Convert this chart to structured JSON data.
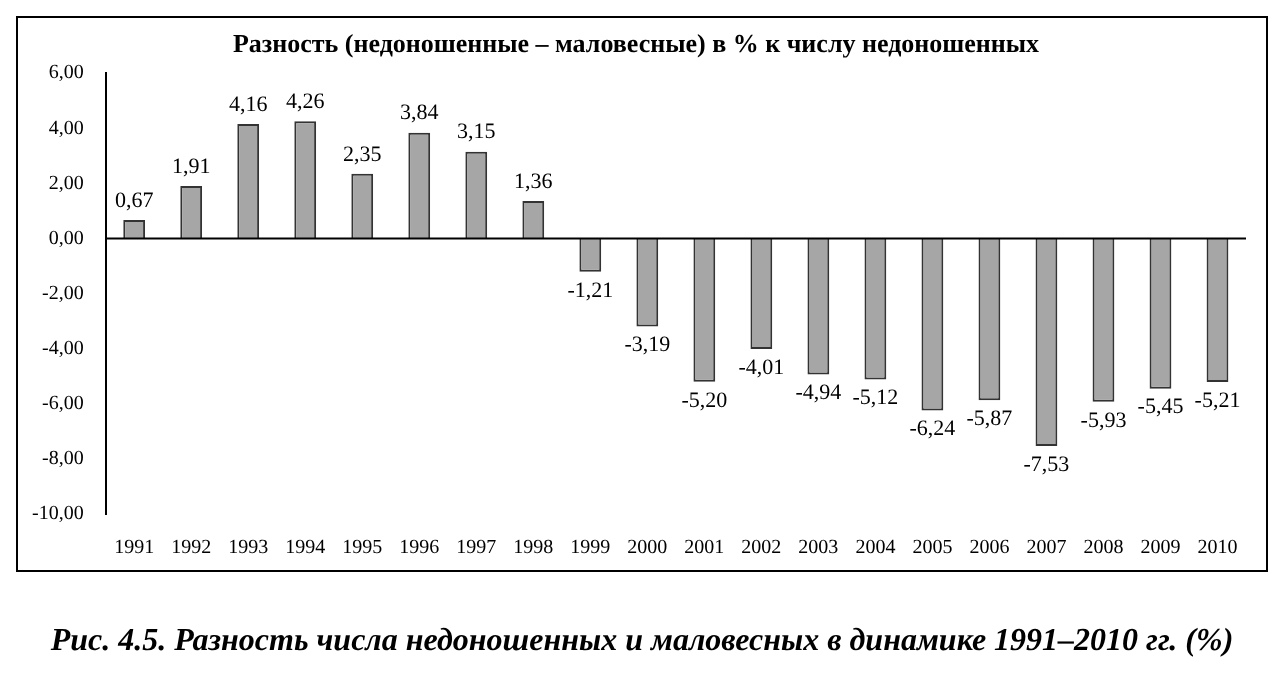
{
  "chart_data": {
    "type": "bar",
    "title": "Разность (недоношенные – маловесные) в % к числу недоношенных",
    "categories": [
      "1991",
      "1992",
      "1993",
      "1994",
      "1995",
      "1996",
      "1997",
      "1998",
      "1999",
      "2000",
      "2001",
      "2002",
      "2003",
      "2004",
      "2005",
      "2006",
      "2007",
      "2008",
      "2009",
      "2010"
    ],
    "values": [
      0.67,
      1.91,
      4.16,
      4.26,
      2.35,
      3.84,
      3.15,
      1.36,
      -1.21,
      -3.19,
      -5.2,
      -4.01,
      -4.94,
      -5.12,
      -6.24,
      -5.87,
      -7.53,
      -5.93,
      -5.45,
      -5.21
    ],
    "value_labels": [
      "0,67",
      "1,91",
      "4,16",
      "4,26",
      "2,35",
      "3,84",
      "3,15",
      "1,36",
      "-1,21",
      "-3,19",
      "-5,20",
      "-4,01",
      "-4,94",
      "-5,12",
      "-6,24",
      "-5,87",
      "-7,53",
      "-5,93",
      "-5,45",
      "-5,21"
    ],
    "color": "#a6a6a6",
    "ylim": [
      -10,
      6
    ],
    "yticks": [
      {
        "value": -10,
        "label": "-10,00"
      },
      {
        "value": -8,
        "label": "-8,00"
      },
      {
        "value": -6,
        "label": "-6,00"
      },
      {
        "value": -4,
        "label": "-4,00"
      },
      {
        "value": -2,
        "label": "-2,00"
      },
      {
        "value": 0,
        "label": "0,00"
      },
      {
        "value": 2,
        "label": "2,00"
      },
      {
        "value": 4,
        "label": "4,00"
      },
      {
        "value": 6,
        "label": "6,00"
      }
    ],
    "grid": false,
    "legend": false,
    "ref_lines": [
      {
        "axis": "y",
        "value": 0,
        "color": "#000000"
      }
    ],
    "annotations": [
      "Рис. 4.5. Разность числа недоношенных и маловесных в динамике 1991–2010 гг. (%)"
    ]
  }
}
